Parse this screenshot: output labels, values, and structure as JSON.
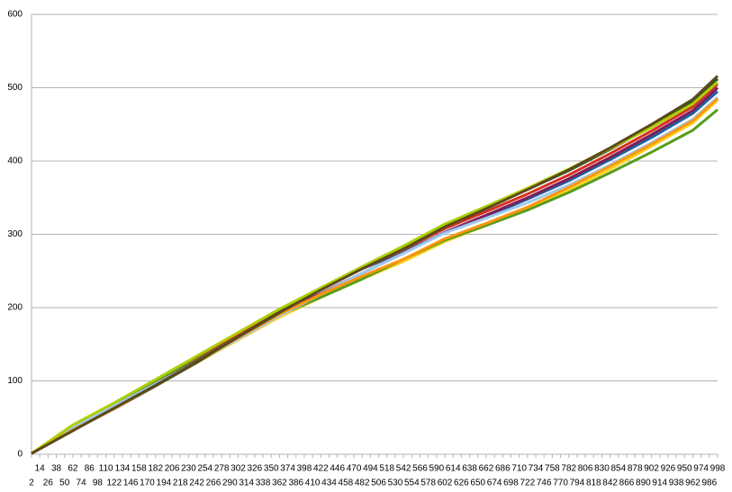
{
  "chart_data": {
    "type": "line",
    "x": [
      2,
      62,
      122,
      182,
      242,
      302,
      362,
      422,
      482,
      542,
      602,
      662,
      722,
      782,
      842,
      902,
      962,
      998
    ],
    "xlim": [
      2,
      998
    ],
    "xticks": [
      2,
      14,
      26,
      38,
      50,
      62,
      74,
      86,
      98,
      110,
      122,
      134,
      146,
      158,
      170,
      182,
      194,
      206,
      218,
      230,
      242,
      254,
      266,
      278,
      290,
      302,
      314,
      326,
      338,
      350,
      362,
      374,
      386,
      398,
      410,
      422,
      434,
      446,
      458,
      470,
      482,
      494,
      506,
      518,
      530,
      542,
      554,
      566,
      578,
      590,
      602,
      614,
      626,
      638,
      650,
      662,
      674,
      686,
      698,
      710,
      722,
      734,
      746,
      758,
      770,
      782,
      794,
      806,
      818,
      830,
      842,
      854,
      866,
      878,
      890,
      902,
      914,
      926,
      938,
      950,
      962,
      974,
      986,
      998
    ],
    "ylim": [
      0,
      600
    ],
    "yticks": [
      0,
      100,
      200,
      300,
      400,
      500,
      600
    ],
    "grid": true,
    "series": [
      {
        "color": "#1f5fa0",
        "values": [
          1,
          38,
          69,
          101,
          132,
          164,
          197,
          226,
          253,
          276,
          302,
          324,
          348,
          373,
          402,
          432,
          465,
          495
        ]
      },
      {
        "color": "#d7301f",
        "values": [
          1,
          36,
          67,
          98,
          130,
          163,
          196,
          225,
          253,
          279,
          308,
          331,
          355,
          381,
          410,
          441,
          474,
          505
        ]
      },
      {
        "color": "#ffd320",
        "values": [
          1,
          35,
          64,
          94,
          125,
          156,
          187,
          214,
          239,
          263,
          290,
          312,
          335,
          361,
          389,
          420,
          452,
          483
        ]
      },
      {
        "color": "#579d1c",
        "values": [
          1,
          38,
          68,
          99,
          129,
          160,
          190,
          214,
          239,
          266,
          292,
          312,
          333,
          357,
          384,
          412,
          442,
          470
        ]
      },
      {
        "color": "#7e1e5a",
        "values": [
          1,
          36,
          66,
          96,
          127,
          160,
          192,
          219,
          247,
          274,
          303,
          326,
          350,
          376,
          405,
          436,
          469,
          500
        ]
      },
      {
        "color": "#9fc9ef",
        "values": [
          1,
          37,
          66,
          96,
          126,
          157,
          189,
          218,
          247,
          274,
          302,
          322,
          343,
          367,
          395,
          425,
          457,
          487
        ]
      },
      {
        "color": "#2f4f2f",
        "values": [
          1,
          33,
          62,
          93,
          125,
          160,
          194,
          225,
          254,
          282,
          312,
          336,
          361,
          387,
          416,
          447,
          480,
          512
        ]
      },
      {
        "color": "#aecf00",
        "values": [
          1,
          40,
          70,
          102,
          134,
          166,
          198,
          227,
          256,
          284,
          314,
          338,
          363,
          389,
          417,
          446,
          478,
          508
        ]
      },
      {
        "color": "#ff950e",
        "values": [
          1,
          33,
          62,
          94,
          126,
          159,
          191,
          218,
          243,
          266,
          294,
          315,
          337,
          364,
          393,
          423,
          455,
          485
        ]
      },
      {
        "color": "#5a4a1a",
        "values": [
          1,
          32,
          63,
          94,
          126,
          160,
          193,
          224,
          253,
          280,
          310,
          335,
          361,
          388,
          418,
          450,
          484,
          516
        ]
      }
    ]
  }
}
